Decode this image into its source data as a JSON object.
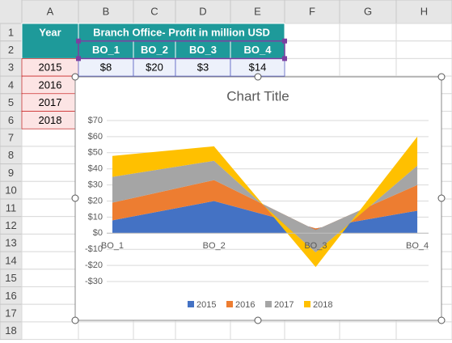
{
  "sheet": {
    "columns": [
      "A",
      "B",
      "C",
      "D",
      "E",
      "F",
      "G",
      "H"
    ],
    "rows": [
      "1",
      "2",
      "3",
      "4",
      "5",
      "6",
      "7",
      "8",
      "9",
      "10",
      "11",
      "12",
      "13",
      "14",
      "15",
      "16",
      "17",
      "18"
    ],
    "year_header": "Year",
    "group_header": "Branch Office- Profit in million USD",
    "branch_headers": [
      "BO_1",
      "BO_2",
      "BO_3",
      "BO_4"
    ],
    "years": [
      "2015",
      "2016",
      "2017",
      "2018"
    ],
    "first_row_values": [
      "$8",
      "$20",
      "$3",
      "$14"
    ]
  },
  "chart_data": {
    "type": "stacked_area",
    "title": "Chart Title",
    "categories": [
      "BO_1",
      "BO_2",
      "BO_3",
      "BO_4"
    ],
    "series": [
      {
        "name": "2015",
        "color": "#4472c4",
        "values": [
          8,
          20,
          3,
          14
        ]
      },
      {
        "name": "2016",
        "color": "#ed7d31",
        "values": [
          11,
          13,
          -1,
          16
        ]
      },
      {
        "name": "2017",
        "color": "#a5a5a5",
        "values": [
          16,
          12,
          -14,
          12
        ]
      },
      {
        "name": "2018",
        "color": "#ffc000",
        "values": [
          13,
          9,
          -9,
          18
        ]
      }
    ],
    "ylim": [
      -30,
      70
    ],
    "yticks": [
      {
        "value": -30,
        "label": "-$30"
      },
      {
        "value": -20,
        "label": "-$20"
      },
      {
        "value": -10,
        "label": "-$10"
      },
      {
        "value": 0,
        "label": "$0"
      },
      {
        "value": 10,
        "label": "$10"
      },
      {
        "value": 20,
        "label": "$20"
      },
      {
        "value": 30,
        "label": "$30"
      },
      {
        "value": 40,
        "label": "$40"
      },
      {
        "value": 50,
        "label": "$50"
      },
      {
        "value": 60,
        "label": "$60"
      },
      {
        "value": 70,
        "label": "$70"
      }
    ],
    "grid": true,
    "legend": "bottom"
  }
}
